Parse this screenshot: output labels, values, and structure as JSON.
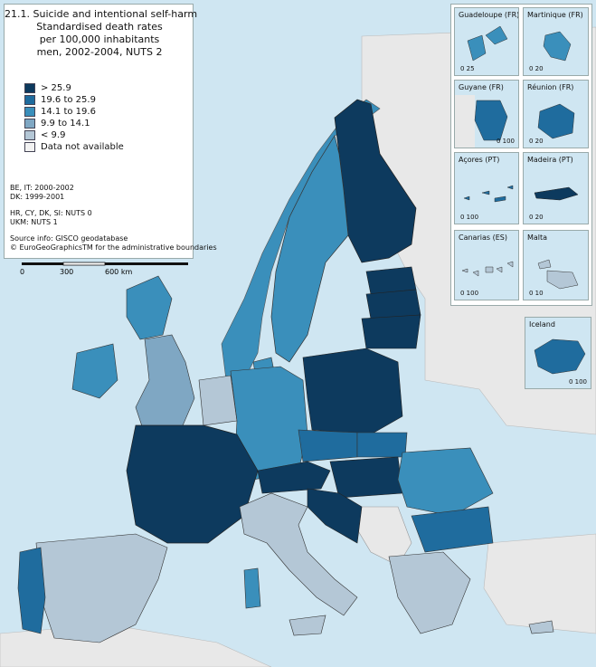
{
  "title": {
    "line1": "21.1. Suicide and intentional self-harm",
    "line2": "Standardised death rates",
    "line3": "per 100,000 inhabitants",
    "line4": "men, 2002-2004, NUTS 2"
  },
  "legend": [
    {
      "label": "> 25.9",
      "color": "#0d3a5e"
    },
    {
      "label": "19.6 to 25.9",
      "color": "#1f6c9e"
    },
    {
      "label": "14.1 to 19.6",
      "color": "#3a8fbb"
    },
    {
      "label": "9.9 to 14.1",
      "color": "#7fa7c3"
    },
    {
      "label": "< 9.9",
      "color": "#b4c7d6"
    },
    {
      "label": "Data not available",
      "color": "#f2f2f2"
    }
  ],
  "notes": {
    "n1": "BE, IT: 2000-2002",
    "n2": "DK: 1999-2001",
    "n3": "HR, CY, DK, SI: NUTS 0",
    "n4": "UKM: NUTS 1",
    "src1": "Source info: GISCO geodatabase",
    "src2": "© EuroGeoGraphicsTM for the administrative boundaries"
  },
  "scale": {
    "t0": "0",
    "t1": "300",
    "t2": "600 km"
  },
  "insets": [
    {
      "name": "Guadeloupe (FR)",
      "scale": "0   25"
    },
    {
      "name": "Martinique (FR)",
      "scale": "0   20"
    },
    {
      "name": "Guyane (FR)",
      "scale": "0  100"
    },
    {
      "name": "Réunion (FR)",
      "scale": "0   20"
    },
    {
      "name": "Açores (PT)",
      "scale": "0       100"
    },
    {
      "name": "Madeira (PT)",
      "scale": "0   20"
    },
    {
      "name": "Canarias (ES)",
      "scale": "0  100"
    },
    {
      "name": "Malta",
      "scale": "0   10"
    },
    {
      "name": "Iceland",
      "scale": "0  100"
    }
  ]
}
